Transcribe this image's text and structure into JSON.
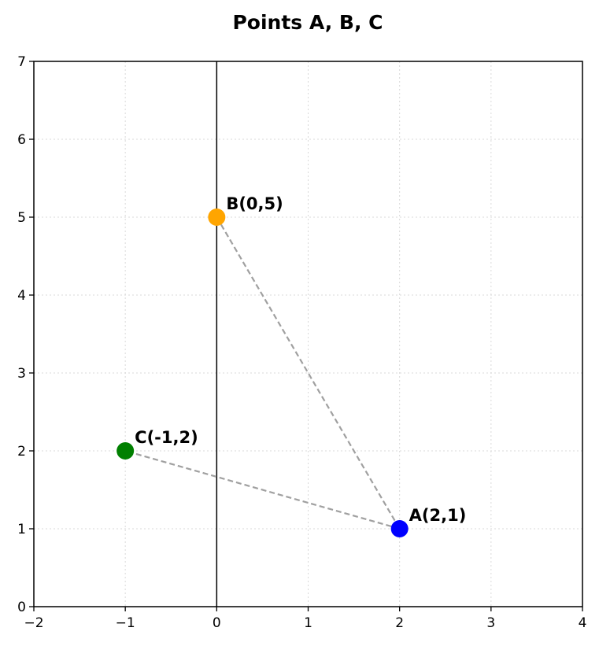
{
  "chart_data": {
    "type": "scatter",
    "title": "Points A, B, C",
    "xlabel": "",
    "ylabel": "",
    "xlim": [
      -2,
      4
    ],
    "ylim": [
      0,
      7
    ],
    "x_ticks": [
      -2,
      -1,
      0,
      1,
      2,
      3,
      4
    ],
    "y_ticks": [
      0,
      1,
      2,
      3,
      4,
      5,
      6,
      7
    ],
    "x_tick_labels": [
      "−2",
      "−1",
      "0",
      "1",
      "2",
      "3",
      "4"
    ],
    "y_tick_labels": [
      "0",
      "1",
      "2",
      "3",
      "4",
      "5",
      "6",
      "7"
    ],
    "grid": true,
    "points": [
      {
        "label": "A(2,1)",
        "x": 2,
        "y": 1,
        "color": "#0000ff"
      },
      {
        "label": "B(0,5)",
        "x": 0,
        "y": 5,
        "color": "#ffa500"
      },
      {
        "label": "C(-1,2)",
        "x": -1,
        "y": 2,
        "color": "#008000"
      }
    ],
    "edges": [
      [
        "B",
        "A"
      ],
      [
        "A",
        "C"
      ]
    ],
    "edge_color": "#a0a0a0",
    "axis_line_x": 0
  }
}
